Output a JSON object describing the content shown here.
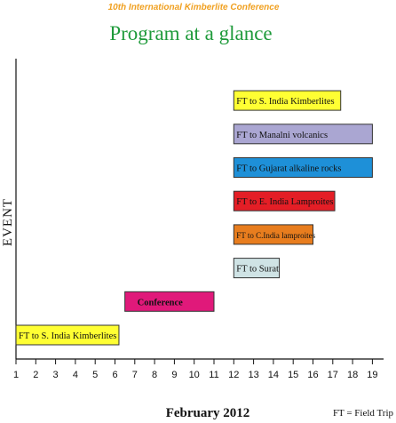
{
  "chart_data": {
    "type": "bar",
    "orientation": "horizontal-timeline",
    "supertitle": "10th International Kimberlite Conference",
    "title": "Program at a glance",
    "xlabel": "February 2012",
    "ylabel": "EVENT",
    "note": "FT = Field Trip",
    "xlim": [
      1,
      19.5
    ],
    "xticks": [
      1,
      2,
      3,
      4,
      5,
      6,
      7,
      8,
      9,
      10,
      11,
      12,
      13,
      14,
      15,
      16,
      17,
      18,
      19
    ],
    "grid": false,
    "events": [
      {
        "label": "FT to S. India Kimberlites",
        "start": 1.0,
        "end": 6.2,
        "color": "#ffff33"
      },
      {
        "label": "Conference",
        "start": 6.5,
        "end": 11.0,
        "color": "#e0197a",
        "bold": true
      },
      {
        "label": "FT to Surat",
        "start": 12.0,
        "end": 14.3,
        "color": "#cfe3e5"
      },
      {
        "label": "FT to C.India lamproites",
        "start": 12.0,
        "end": 16.0,
        "color": "#e87d1e",
        "narrow": true
      },
      {
        "label": "FT to E. India Lamproites",
        "start": 12.0,
        "end": 17.1,
        "color": "#e41e26"
      },
      {
        "label": "FT to Gujarat alkaline rocks",
        "start": 12.0,
        "end": 19.0,
        "color": "#1e90d8"
      },
      {
        "label": "FT to Manalni volcanics",
        "start": 12.0,
        "end": 19.0,
        "color": "#aaa6d2"
      },
      {
        "label": "FT to S. India Kimberlites",
        "start": 12.0,
        "end": 17.4,
        "color": "#ffff33"
      }
    ]
  }
}
